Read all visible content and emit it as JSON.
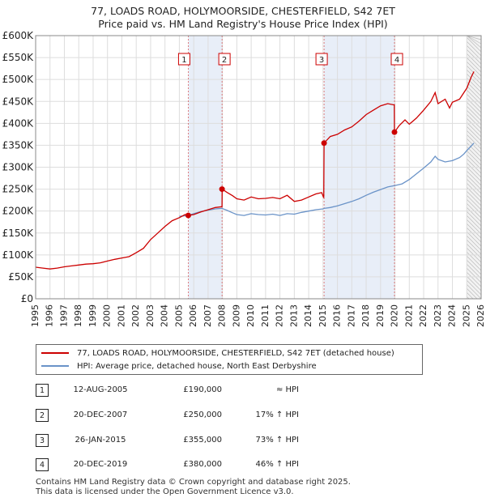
{
  "title_line1": "77, LOADS ROAD, HOLYMOORSIDE, CHESTERFIELD, S42 7ET",
  "title_line2": "Price paid vs. HM Land Registry's House Price Index (HPI)",
  "colors": {
    "red": "#cc0000",
    "blue": "#6a93c8",
    "band": "#e8eef8",
    "grid": "#dddddd"
  },
  "chart_data": {
    "type": "line",
    "xlim": [
      1995,
      2026
    ],
    "ylim": [
      0,
      600000
    ],
    "x_ticks": [
      "1995",
      "1996",
      "1997",
      "1998",
      "1999",
      "2000",
      "2001",
      "2002",
      "2003",
      "2004",
      "2005",
      "2006",
      "2007",
      "2008",
      "2009",
      "2010",
      "2011",
      "2012",
      "2013",
      "2014",
      "2015",
      "2016",
      "2017",
      "2018",
      "2019",
      "2020",
      "2021",
      "2022",
      "2023",
      "2024",
      "2025",
      "2026"
    ],
    "y_ticks": [
      {
        "value": 0,
        "label": "£0"
      },
      {
        "value": 50000,
        "label": "£50K"
      },
      {
        "value": 100000,
        "label": "£100K"
      },
      {
        "value": 150000,
        "label": "£150K"
      },
      {
        "value": 200000,
        "label": "£200K"
      },
      {
        "value": 250000,
        "label": "£250K"
      },
      {
        "value": 300000,
        "label": "£300K"
      },
      {
        "value": 350000,
        "label": "£350K"
      },
      {
        "value": 400000,
        "label": "£400K"
      },
      {
        "value": 450000,
        "label": "£450K"
      },
      {
        "value": 500000,
        "label": "£500K"
      },
      {
        "value": 550000,
        "label": "£550K"
      },
      {
        "value": 600000,
        "label": "£600K"
      }
    ],
    "shaded_ranges": [
      [
        2005.62,
        2007.97
      ],
      [
        2015.07,
        2019.97
      ]
    ],
    "forecast_start": 2025.0,
    "series": [
      {
        "name": "77, LOADS ROAD, HOLYMOORSIDE, CHESTERFIELD, S42 7ET (detached house)",
        "color": "#cc0000",
        "points": [
          [
            1995,
            72000
          ],
          [
            1995.5,
            70000
          ],
          [
            1996,
            68000
          ],
          [
            1996.5,
            70000
          ],
          [
            1997,
            73000
          ],
          [
            1997.5,
            75000
          ],
          [
            1998,
            77000
          ],
          [
            1998.5,
            79000
          ],
          [
            1999,
            80000
          ],
          [
            1999.5,
            82000
          ],
          [
            2000,
            86000
          ],
          [
            2000.5,
            90000
          ],
          [
            2001,
            93000
          ],
          [
            2001.5,
            96000
          ],
          [
            2002,
            105000
          ],
          [
            2002.5,
            115000
          ],
          [
            2003,
            135000
          ],
          [
            2003.5,
            150000
          ],
          [
            2004,
            165000
          ],
          [
            2004.5,
            178000
          ],
          [
            2005,
            185000
          ],
          [
            2005.4,
            192000
          ],
          [
            2005.62,
            190000
          ],
          [
            2006,
            192000
          ],
          [
            2006.5,
            198000
          ],
          [
            2007,
            203000
          ],
          [
            2007.5,
            208000
          ],
          [
            2007.97,
            210000
          ],
          [
            2007.98,
            250000
          ],
          [
            2008.3,
            243000
          ],
          [
            2008.7,
            235000
          ],
          [
            2009,
            228000
          ],
          [
            2009.5,
            225000
          ],
          [
            2010,
            232000
          ],
          [
            2010.5,
            228000
          ],
          [
            2011,
            229000
          ],
          [
            2011.5,
            231000
          ],
          [
            2012,
            228000
          ],
          [
            2012.5,
            236000
          ],
          [
            2013,
            222000
          ],
          [
            2013.5,
            225000
          ],
          [
            2014,
            232000
          ],
          [
            2014.5,
            239000
          ],
          [
            2014.9,
            242000
          ],
          [
            2015.05,
            230000
          ],
          [
            2015.07,
            355000
          ],
          [
            2015.5,
            370000
          ],
          [
            2016,
            375000
          ],
          [
            2016.5,
            385000
          ],
          [
            2017,
            392000
          ],
          [
            2017.5,
            405000
          ],
          [
            2018,
            420000
          ],
          [
            2018.5,
            430000
          ],
          [
            2019,
            440000
          ],
          [
            2019.5,
            445000
          ],
          [
            2019.96,
            442000
          ],
          [
            2019.97,
            380000
          ],
          [
            2020.3,
            395000
          ],
          [
            2020.7,
            408000
          ],
          [
            2021,
            398000
          ],
          [
            2021.5,
            412000
          ],
          [
            2022,
            430000
          ],
          [
            2022.5,
            450000
          ],
          [
            2022.8,
            470000
          ],
          [
            2023,
            445000
          ],
          [
            2023.5,
            455000
          ],
          [
            2023.8,
            435000
          ],
          [
            2024,
            448000
          ],
          [
            2024.5,
            455000
          ],
          [
            2024.8,
            470000
          ],
          [
            2025,
            480000
          ],
          [
            2025.3,
            505000
          ],
          [
            2025.5,
            518000
          ]
        ]
      },
      {
        "name": "HPI: Average price, detached house, North East Derbyshire",
        "color": "#6a93c8",
        "points": [
          [
            2005,
            188000
          ],
          [
            2005.62,
            190000
          ],
          [
            2006,
            194000
          ],
          [
            2006.5,
            199000
          ],
          [
            2007,
            202000
          ],
          [
            2007.5,
            205000
          ],
          [
            2007.97,
            206000
          ],
          [
            2008.3,
            202000
          ],
          [
            2008.7,
            196000
          ],
          [
            2009,
            192000
          ],
          [
            2009.5,
            190000
          ],
          [
            2010,
            194000
          ],
          [
            2010.5,
            192000
          ],
          [
            2011,
            191000
          ],
          [
            2011.5,
            193000
          ],
          [
            2012,
            190000
          ],
          [
            2012.5,
            194000
          ],
          [
            2013,
            193000
          ],
          [
            2013.5,
            197000
          ],
          [
            2014,
            200000
          ],
          [
            2014.5,
            203000
          ],
          [
            2015,
            205000
          ],
          [
            2015.07,
            206000
          ],
          [
            2015.5,
            208000
          ],
          [
            2016,
            212000
          ],
          [
            2016.5,
            217000
          ],
          [
            2017,
            222000
          ],
          [
            2017.5,
            228000
          ],
          [
            2018,
            236000
          ],
          [
            2018.5,
            243000
          ],
          [
            2019,
            249000
          ],
          [
            2019.5,
            255000
          ],
          [
            2019.97,
            258000
          ],
          [
            2020.5,
            262000
          ],
          [
            2021,
            272000
          ],
          [
            2021.5,
            285000
          ],
          [
            2022,
            298000
          ],
          [
            2022.5,
            312000
          ],
          [
            2022.8,
            325000
          ],
          [
            2023,
            318000
          ],
          [
            2023.5,
            312000
          ],
          [
            2024,
            315000
          ],
          [
            2024.5,
            322000
          ],
          [
            2024.8,
            330000
          ],
          [
            2025,
            338000
          ],
          [
            2025.3,
            348000
          ],
          [
            2025.5,
            355000
          ]
        ]
      }
    ],
    "sales": [
      {
        "label": "1",
        "x": 2005.62,
        "price": 190000
      },
      {
        "label": "2",
        "x": 2007.97,
        "price": 250000
      },
      {
        "label": "3",
        "x": 2015.07,
        "price": 355000
      },
      {
        "label": "4",
        "x": 2019.97,
        "price": 380000
      }
    ]
  },
  "legend": {
    "red_label": "77, LOADS ROAD, HOLYMOORSIDE, CHESTERFIELD, S42 7ET (detached house)",
    "blue_label": "HPI: Average price, detached house, North East Derbyshire"
  },
  "table": [
    {
      "num": "1",
      "date": "12-AUG-2005",
      "price": "£190,000",
      "hpi": "≈ HPI"
    },
    {
      "num": "2",
      "date": "20-DEC-2007",
      "price": "£250,000",
      "hpi": "17% ↑ HPI"
    },
    {
      "num": "3",
      "date": "26-JAN-2015",
      "price": "£355,000",
      "hpi": "73% ↑ HPI"
    },
    {
      "num": "4",
      "date": "20-DEC-2019",
      "price": "£380,000",
      "hpi": "46% ↑ HPI"
    }
  ],
  "footer_line1": "Contains HM Land Registry data © Crown copyright and database right 2025.",
  "footer_line2": "This data is licensed under the Open Government Licence v3.0."
}
